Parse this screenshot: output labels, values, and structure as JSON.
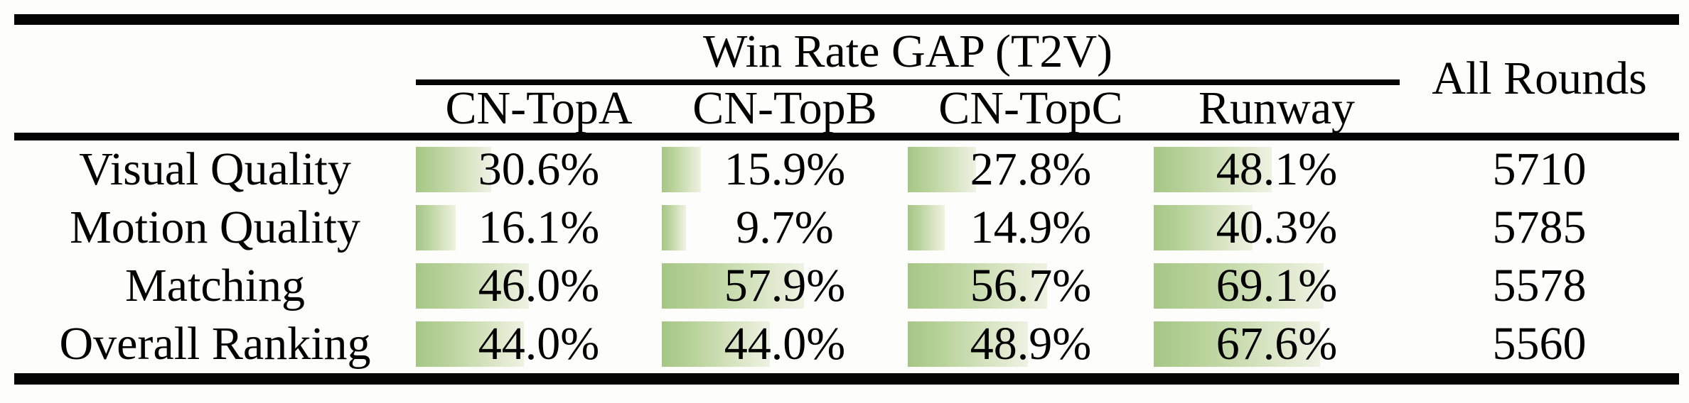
{
  "table": {
    "title": "Win Rate GAP (T2V)",
    "all_rounds_header": "All Rounds",
    "columns": [
      "CN-TopA",
      "CN-TopB",
      "CN-TopC",
      "Runway"
    ],
    "rows": [
      {
        "label": "Visual Quality",
        "values": [
          30.6,
          15.9,
          27.8,
          48.1
        ],
        "display": [
          "30.6%",
          "15.9%",
          "27.8%",
          "48.1%"
        ],
        "all_rounds": "5710"
      },
      {
        "label": "Motion Quality",
        "values": [
          16.1,
          9.7,
          14.9,
          40.3
        ],
        "display": [
          "16.1%",
          "9.7%",
          "14.9%",
          "40.3%"
        ],
        "all_rounds": "5785"
      },
      {
        "label": "Matching",
        "values": [
          46.0,
          57.9,
          56.7,
          69.1
        ],
        "display": [
          "46.0%",
          "57.9%",
          "56.7%",
          "69.1%"
        ],
        "all_rounds": "5578"
      },
      {
        "label": "Overall Ranking",
        "values": [
          44.0,
          44.0,
          48.9,
          67.6
        ],
        "display": [
          "44.0%",
          "44.0%",
          "48.9%",
          "67.6%"
        ],
        "all_rounds": "5560"
      }
    ]
  },
  "chart_data": {
    "type": "table",
    "title": "Win Rate GAP (T2V)",
    "row_labels": [
      "Visual Quality",
      "Motion Quality",
      "Matching",
      "Overall Ranking"
    ],
    "columns": [
      "CN-TopA",
      "CN-TopB",
      "CN-TopC",
      "Runway",
      "All Rounds"
    ],
    "values_percent": [
      [
        30.6,
        15.9,
        27.8,
        48.1
      ],
      [
        16.1,
        9.7,
        14.9,
        40.3
      ],
      [
        46.0,
        57.9,
        56.7,
        69.1
      ],
      [
        44.0,
        44.0,
        48.9,
        67.6
      ]
    ],
    "all_rounds": [
      5710,
      5785,
      5578,
      5560
    ],
    "bar_scale_max_percent": 100
  },
  "colors": {
    "bar_green": "#a5c685",
    "bar_fade": "#eef2e3",
    "rule_black": "#040404",
    "background": "#fdfdfb"
  }
}
